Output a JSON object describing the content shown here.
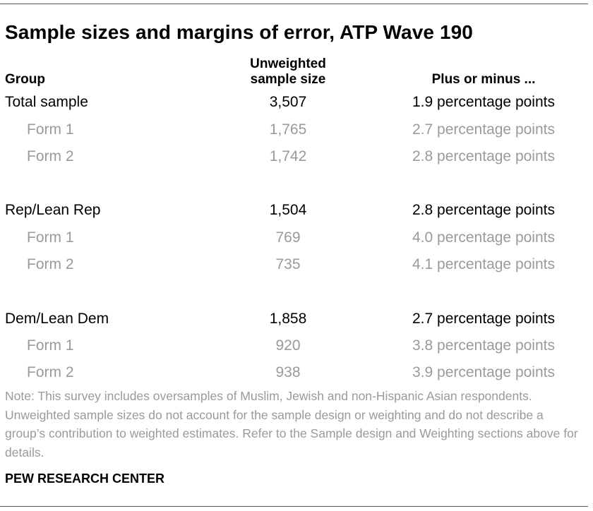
{
  "title": "Sample sizes and margins of error, ATP Wave 190",
  "headers": {
    "group": "Group",
    "size_line1": "Unweighted",
    "size_line2": "sample size",
    "moe": "Plus or minus ..."
  },
  "rows": [
    {
      "group": "Total sample",
      "size": "3,507",
      "moe": "1.9 percentage points"
    },
    {
      "group": "Form 1",
      "size": "1,765",
      "moe": "2.7 percentage points"
    },
    {
      "group": "Form 2",
      "size": "1,742",
      "moe": "2.8 percentage points"
    },
    {
      "group": "Rep/Lean Rep",
      "size": "1,504",
      "moe": "2.8 percentage points"
    },
    {
      "group": "Form 1",
      "size": "769",
      "moe": "4.0 percentage points"
    },
    {
      "group": "Form 2",
      "size": "735",
      "moe": "4.1 percentage points"
    },
    {
      "group": "Dem/Lean Dem",
      "size": "1,858",
      "moe": "2.7 percentage points"
    },
    {
      "group": "Form 1",
      "size": "920",
      "moe": "3.8 percentage points"
    },
    {
      "group": "Form 2",
      "size": "938",
      "moe": "3.9 percentage points"
    }
  ],
  "note": "Note: This survey includes oversamples of Muslim, Jewish and non-Hispanic Asian respondents. Unweighted sample sizes do not account for the sample design or weighting and do not describe a group’s contribution to weighted estimates. Refer to the Sample design and Weighting sections above for details.",
  "source": "PEW RESEARCH CENTER",
  "colors": {
    "text": "#000000",
    "muted": "#9a9a9a",
    "rule": "#555555"
  }
}
